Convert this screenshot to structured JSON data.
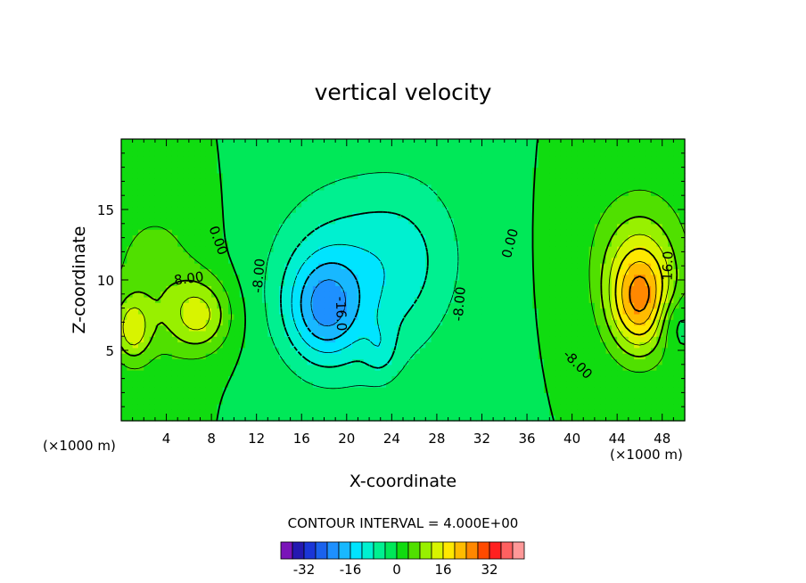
{
  "chart_data": {
    "type": "heatmap",
    "subtype": "filled-contour",
    "title": "vertical velocity",
    "xlabel": "X-coordinate",
    "ylabel": "Z-coordinate",
    "x_unit": "(×1000 m)",
    "y_unit": "(×1000 m)",
    "xlim": [
      0,
      50
    ],
    "ylim": [
      0,
      20
    ],
    "x_ticks": [
      4,
      8,
      12,
      16,
      20,
      24,
      28,
      32,
      36,
      40,
      44,
      48
    ],
    "y_ticks": [
      5,
      10,
      15
    ],
    "contour_interval_text": "CONTOUR INTERVAL = 4.000E+00",
    "contour_interval": 4,
    "contour_labels": [
      {
        "text": "0.00",
        "x": 8.6,
        "z": 12.8,
        "angle": 70
      },
      {
        "text": "8.00",
        "x": 6.0,
        "z": 10.1,
        "angle": -8
      },
      {
        "text": "-8.00",
        "x": 12.2,
        "z": 10.3,
        "angle": -85
      },
      {
        "text": "-16.0",
        "x": 19.5,
        "z": 7.6,
        "angle": 88
      },
      {
        "text": "-8.00",
        "x": 30.0,
        "z": 8.3,
        "angle": -85
      },
      {
        "text": "0.00",
        "x": 34.5,
        "z": 12.6,
        "angle": -75
      },
      {
        "text": "-8.00",
        "x": 40.5,
        "z": 4.0,
        "angle": 45
      },
      {
        "text": "16.0",
        "x": 48.5,
        "z": 11.0,
        "angle": -88
      }
    ],
    "legend": {
      "levels": [
        -36,
        -32,
        -28,
        -24,
        -20,
        -16,
        -12,
        -8,
        -4,
        0,
        4,
        8,
        12,
        16,
        20,
        24,
        28,
        32,
        36
      ],
      "tick_labels": [
        "-32",
        "-16",
        "0",
        "16",
        "32"
      ],
      "tick_values": [
        -32,
        -16,
        0,
        16,
        32
      ],
      "colors": [
        "#7a14b8",
        "#2418b0",
        "#1a36d8",
        "#1a62ee",
        "#1e90ff",
        "#18b8ff",
        "#00e4ff",
        "#00f0d0",
        "#00f090",
        "#00e858",
        "#10dc10",
        "#50e000",
        "#98f000",
        "#d8f400",
        "#ffe800",
        "#ffbc00",
        "#ff8800",
        "#ff4a00",
        "#ff2020",
        "#ff6060",
        "#ff9898"
      ]
    },
    "field_features": [
      {
        "kind": "downdraft",
        "peak": -24,
        "x": 18.5,
        "z": 7.5
      },
      {
        "kind": "updraft",
        "peak": 20,
        "x": 46,
        "z": 8.5
      },
      {
        "kind": "updraft",
        "peak": 12,
        "x": 6,
        "z": 7.5
      },
      {
        "kind": "updraft",
        "peak": 12,
        "x": 1,
        "z": 6.5
      }
    ]
  }
}
